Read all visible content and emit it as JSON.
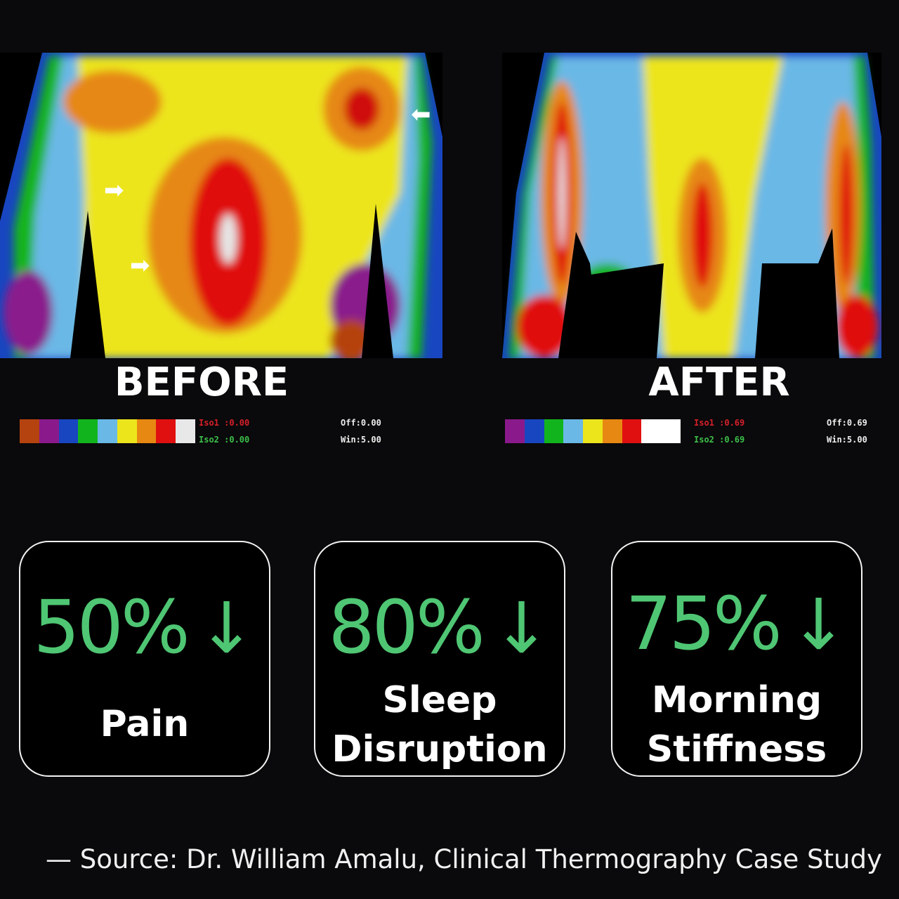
{
  "images": {
    "before": {
      "label": "BEFORE",
      "scale_colors": [
        "#b5430f",
        "#8a1a8c",
        "#1846c0",
        "#12b41e",
        "#6ab8e6",
        "#ece51c",
        "#e68812",
        "#e01010",
        "#e8e8e8"
      ],
      "iso1": "Iso1 :0.00",
      "iso2": "Iso2 :0.00",
      "off": "Off:0.00",
      "win": "Win:5.00"
    },
    "after": {
      "label": "AFTER",
      "scale_colors": [
        "#8a1a8c",
        "#1846c0",
        "#12b41e",
        "#6ab8e6",
        "#ece51c",
        "#e68812",
        "#e01010",
        "#ffffff",
        "#ffffff"
      ],
      "iso1": "Iso1 :0.69",
      "iso2": "Iso2 :0.69",
      "off": "Off:0.69",
      "win": "Win:5.00"
    }
  },
  "stats": [
    {
      "value": "50%",
      "arrow": "↓",
      "label_lines": [
        "Pain"
      ]
    },
    {
      "value": "80%",
      "arrow": "↓",
      "label_lines": [
        "Sleep",
        "Disruption"
      ]
    },
    {
      "value": "75%",
      "arrow": "↓",
      "label_lines": [
        "Morning",
        "Stiffness"
      ]
    }
  ],
  "accent_color": "#4fc673",
  "source": "— Source: Dr. William Amalu, Clinical Thermography Case Study"
}
